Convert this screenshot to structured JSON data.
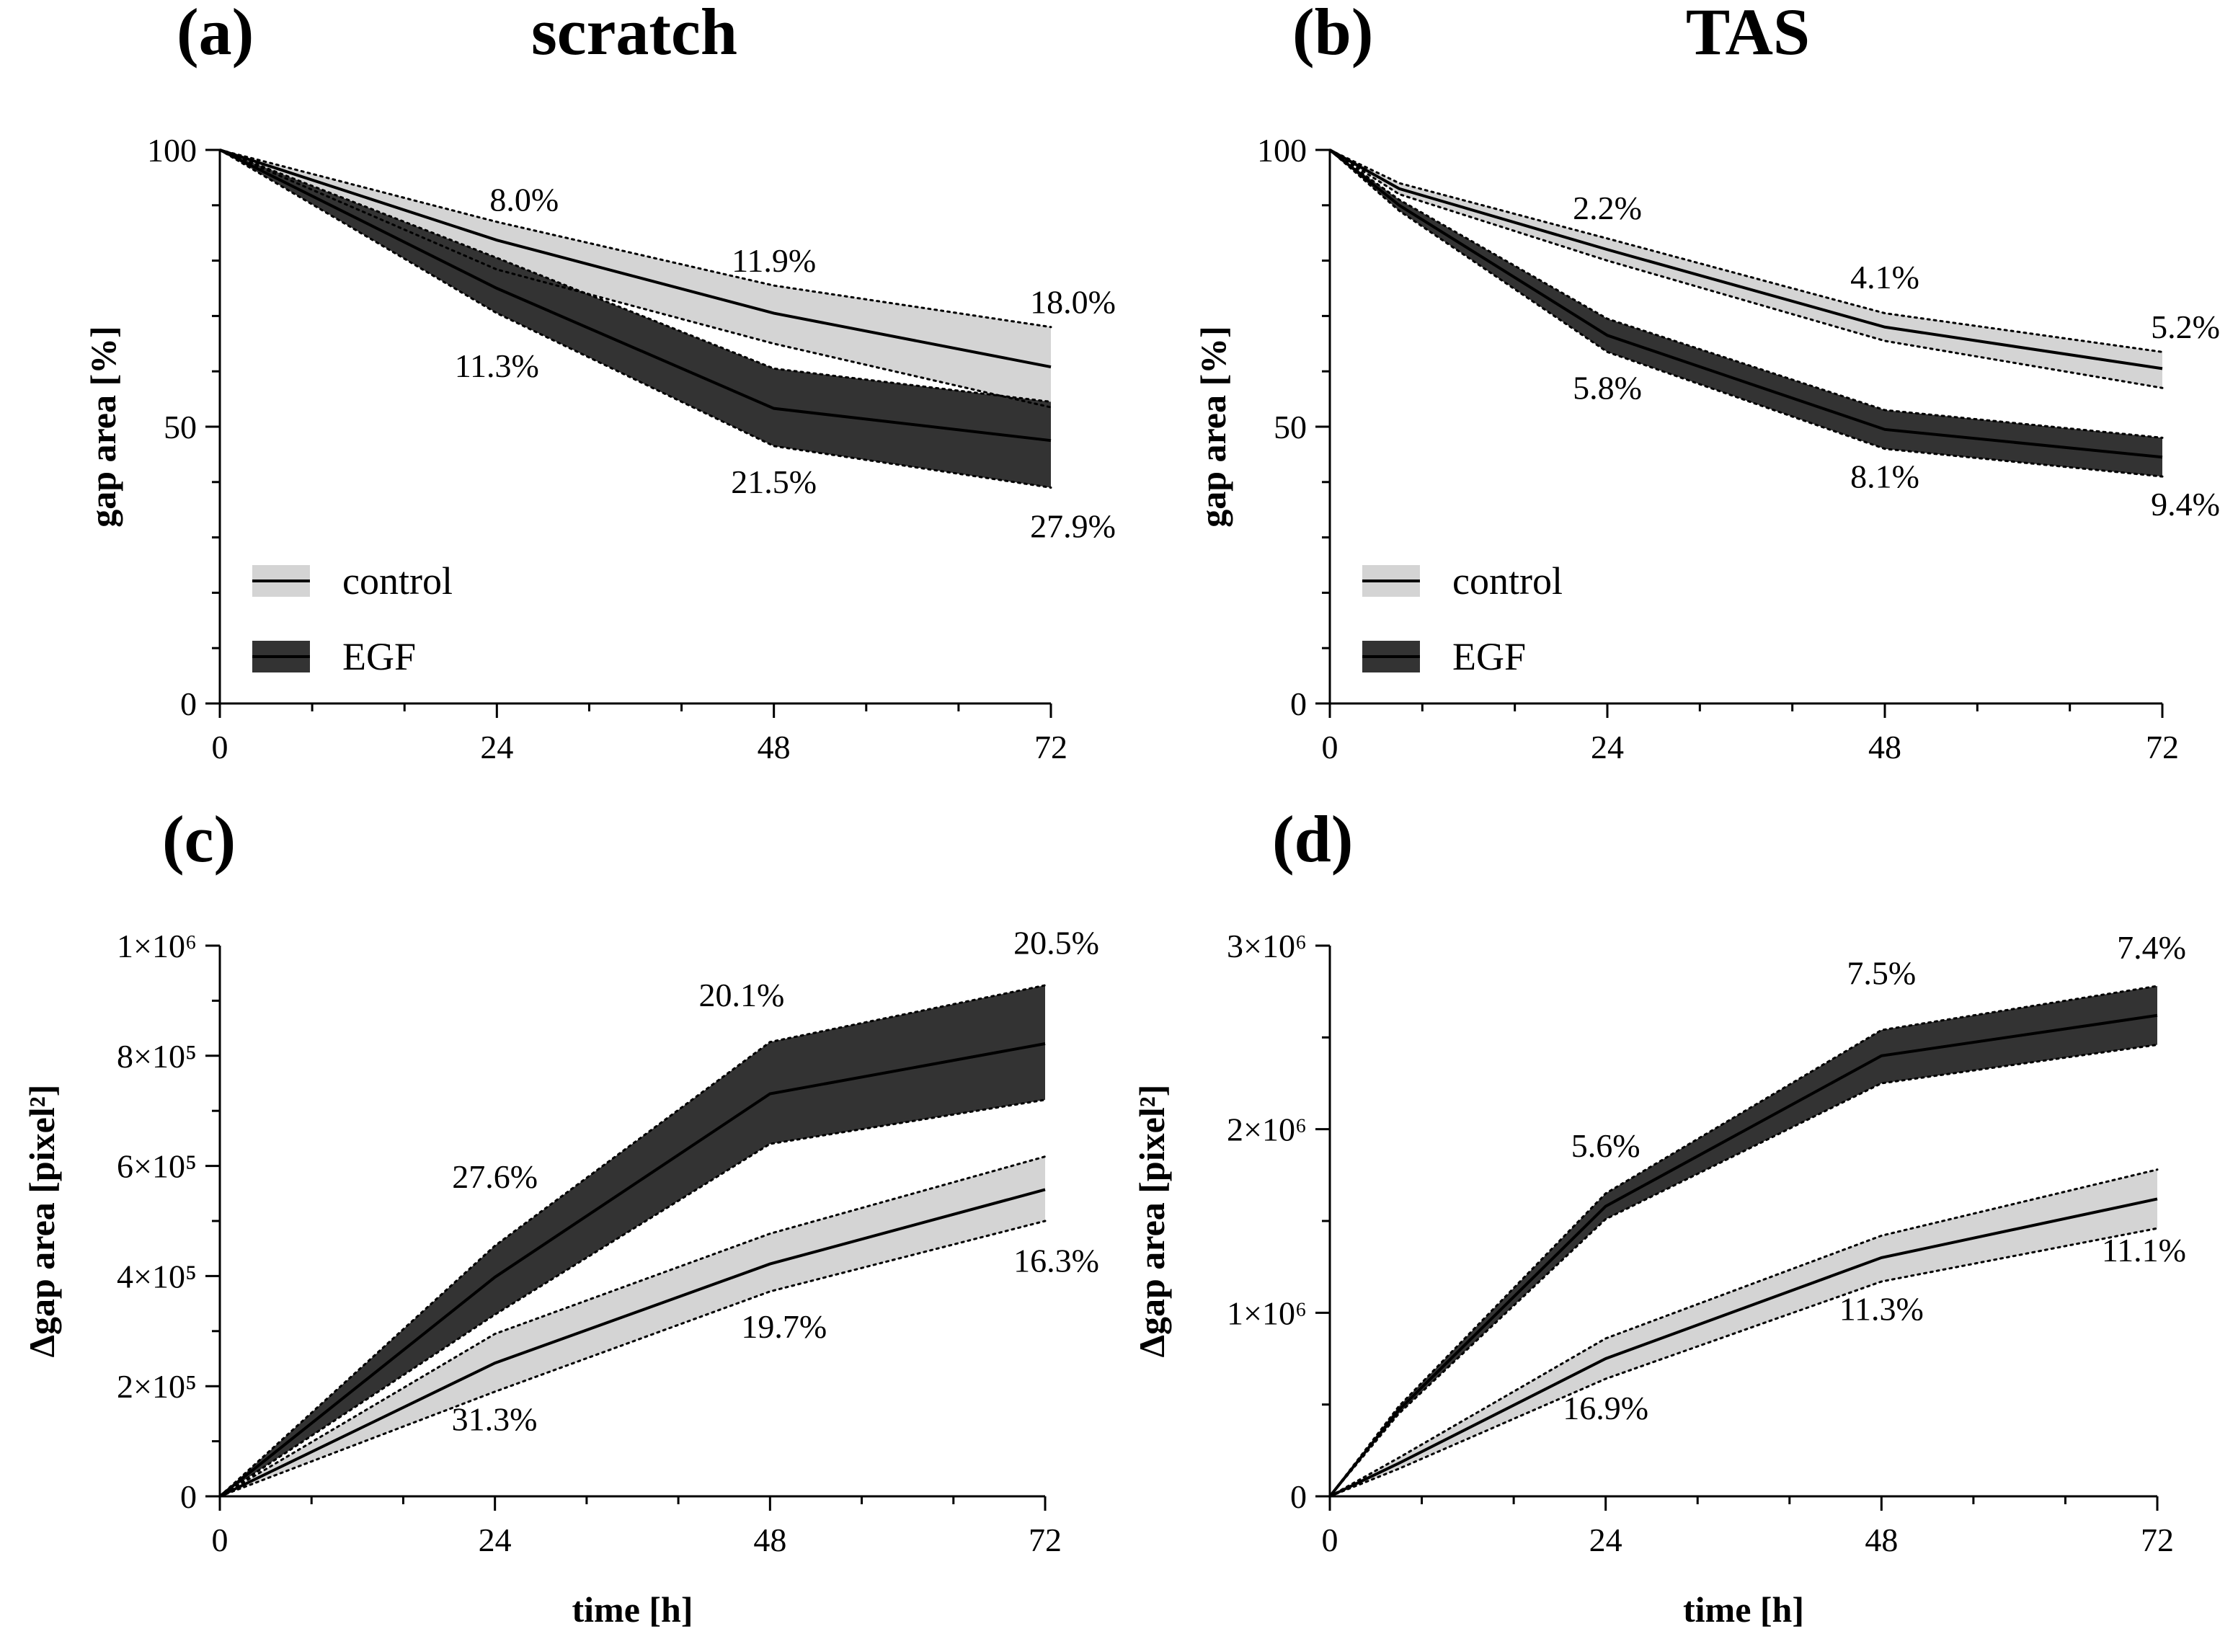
{
  "chart_data": [
    {
      "id": "a",
      "type": "line",
      "panel_label": "(a)",
      "title": "scratch",
      "xlabel": "",
      "ylabel": "gap area [%]",
      "x": [
        0,
        24,
        48,
        72
      ],
      "xlim": [
        0,
        72
      ],
      "ylim": [
        0,
        100
      ],
      "xticks": [
        "0",
        "24",
        "48",
        "72"
      ],
      "yticks": [
        {
          "v": 0,
          "label": "0"
        },
        {
          "v": 50,
          "label": "50"
        },
        {
          "v": 100,
          "label": "100"
        }
      ],
      "band_style": "dashed",
      "series": [
        {
          "name": "control",
          "style": "light",
          "values": [
            100,
            83.7,
            70.5,
            60.8
          ],
          "lower": [
            100,
            78.4,
            65.0,
            53.5
          ],
          "upper": [
            100,
            87.0,
            75.5,
            68.0
          ]
        },
        {
          "name": "EGF",
          "style": "dark",
          "values": [
            100,
            75.0,
            53.3,
            47.5
          ],
          "lower": [
            100,
            70.5,
            46.5,
            39.0
          ],
          "upper": [
            100,
            80.5,
            60.5,
            54.5
          ]
        }
      ],
      "annotations": [
        {
          "text": "8.0%",
          "x": 24,
          "y": 89,
          "anchor": "start",
          "dx": -10
        },
        {
          "text": "11.9%",
          "x": 48,
          "y": 78,
          "anchor": "middle"
        },
        {
          "text": "18.0%",
          "x": 72,
          "y": 70.5,
          "anchor": "end",
          "dx": 90
        },
        {
          "text": "11.3%",
          "x": 24,
          "y": 59,
          "anchor": "middle"
        },
        {
          "text": "21.5%",
          "x": 48,
          "y": 38,
          "anchor": "middle"
        },
        {
          "text": "27.9%",
          "x": 72,
          "y": 30,
          "anchor": "end",
          "dx": 90
        }
      ],
      "legend": {
        "position": "bottom-left",
        "entries": [
          "control",
          "EGF"
        ]
      }
    },
    {
      "id": "b",
      "type": "line",
      "panel_label": "(b)",
      "title": "TAS",
      "xlabel": "",
      "ylabel": "gap area [%]",
      "x": [
        0,
        6,
        24,
        48,
        72
      ],
      "xlim": [
        0,
        72
      ],
      "ylim": [
        0,
        100
      ],
      "xticks": [
        "0",
        "24",
        "48",
        "72"
      ],
      "yticks": [
        {
          "v": 0,
          "label": "0"
        },
        {
          "v": 50,
          "label": "50"
        },
        {
          "v": 100,
          "label": "100"
        }
      ],
      "band_style": "dashed",
      "series": [
        {
          "name": "control",
          "style": "light",
          "values": [
            100,
            93.0,
            82.0,
            68.0,
            60.5
          ],
          "lower": [
            100,
            92.0,
            80.0,
            65.5,
            57.0
          ],
          "upper": [
            100,
            94.0,
            84.0,
            70.5,
            63.5
          ]
        },
        {
          "name": "EGF",
          "style": "dark",
          "values": [
            100,
            90.0,
            66.5,
            49.5,
            44.5
          ],
          "lower": [
            100,
            89.0,
            63.5,
            46.0,
            41.0
          ],
          "upper": [
            100,
            91.0,
            69.5,
            53.0,
            48.0
          ]
        }
      ],
      "annotations": [
        {
          "text": "2.2%",
          "x": 24,
          "y": 87.5,
          "anchor": "middle"
        },
        {
          "text": "4.1%",
          "x": 48,
          "y": 75,
          "anchor": "middle"
        },
        {
          "text": "5.2%",
          "x": 72,
          "y": 66,
          "anchor": "end",
          "dx": 80
        },
        {
          "text": "5.8%",
          "x": 24,
          "y": 55,
          "anchor": "middle"
        },
        {
          "text": "8.1%",
          "x": 48,
          "y": 39,
          "anchor": "middle"
        },
        {
          "text": "9.4%",
          "x": 72,
          "y": 34,
          "anchor": "end",
          "dx": 80
        }
      ],
      "legend": {
        "position": "bottom-left",
        "entries": [
          "control",
          "EGF"
        ]
      }
    },
    {
      "id": "c",
      "type": "line",
      "panel_label": "(c)",
      "title": "",
      "xlabel": "time [h]",
      "ylabel": "Δgap area [pixel²]",
      "x": [
        0,
        24,
        48,
        72
      ],
      "xlim": [
        0,
        72
      ],
      "ylim": [
        0,
        1000000
      ],
      "xticks": [
        "0",
        "24",
        "48",
        "72"
      ],
      "yticks": [
        {
          "v": 0,
          "label": "0"
        },
        {
          "v": 200000,
          "label": "2×10⁵"
        },
        {
          "v": 400000,
          "label": "4×10⁵"
        },
        {
          "v": 600000,
          "label": "6×10⁵"
        },
        {
          "v": 800000,
          "label": "8×10⁵"
        },
        {
          "v": 1000000,
          "label": "1×10⁶"
        }
      ],
      "band_style": "dashed",
      "series": [
        {
          "name": "control",
          "style": "light",
          "values": [
            0,
            242000,
            422000,
            557000
          ],
          "lower": [
            0,
            190000,
            372000,
            500000
          ],
          "upper": [
            0,
            295000,
            477000,
            617000
          ]
        },
        {
          "name": "EGF",
          "style": "dark",
          "values": [
            0,
            398000,
            731000,
            822000
          ],
          "lower": [
            0,
            330000,
            640000,
            720000
          ],
          "upper": [
            0,
            455000,
            825000,
            928000
          ]
        }
      ],
      "annotations": [
        {
          "text": "27.6%",
          "x": 24,
          "y": 560000,
          "anchor": "middle"
        },
        {
          "text": "20.1%",
          "x": 48,
          "y": 890000,
          "anchor": "end",
          "dx": 20
        },
        {
          "text": "20.5%",
          "x": 72,
          "y": 985000,
          "anchor": "end",
          "dx": 75
        },
        {
          "text": "31.3%",
          "x": 24,
          "y": 120000,
          "anchor": "start",
          "dx": -60
        },
        {
          "text": "19.7%",
          "x": 48,
          "y": 288000,
          "anchor": "start",
          "dx": -40
        },
        {
          "text": "16.3%",
          "x": 72,
          "y": 408000,
          "anchor": "end",
          "dx": 75
        }
      ]
    },
    {
      "id": "d",
      "type": "line",
      "panel_label": "(d)",
      "title": "",
      "xlabel": "time [h]",
      "ylabel": "Δgap area [pixel²]",
      "x": [
        0,
        6,
        24,
        48,
        72
      ],
      "xlim": [
        0,
        72
      ],
      "ylim": [
        0,
        3000000
      ],
      "xticks": [
        "0",
        "24",
        "48",
        "72"
      ],
      "yticks": [
        {
          "v": 0,
          "label": "0"
        },
        {
          "v": 1000000,
          "label": "1×10⁶"
        },
        {
          "v": 2000000,
          "label": "2×10⁶"
        },
        {
          "v": 3000000,
          "label": "3×10⁶"
        }
      ],
      "band_style": "dashed",
      "series": [
        {
          "name": "control",
          "style": "light",
          "values": [
            0,
            180000,
            750000,
            1300000,
            1620000
          ],
          "lower": [
            0,
            150000,
            640000,
            1170000,
            1460000
          ],
          "upper": [
            0,
            210000,
            860000,
            1420000,
            1780000
          ]
        },
        {
          "name": "EGF",
          "style": "dark",
          "values": [
            0,
            470000,
            1580000,
            2400000,
            2620000
          ],
          "lower": [
            0,
            450000,
            1510000,
            2250000,
            2460000
          ],
          "upper": [
            0,
            490000,
            1650000,
            2540000,
            2780000
          ]
        }
      ],
      "annotations": [
        {
          "text": "5.6%",
          "x": 24,
          "y": 1850000,
          "anchor": "middle"
        },
        {
          "text": "7.5%",
          "x": 48,
          "y": 2790000,
          "anchor": "middle"
        },
        {
          "text": "7.4%",
          "x": 72,
          "y": 2930000,
          "anchor": "end",
          "dx": 40
        },
        {
          "text": "16.9%",
          "x": 24,
          "y": 420000,
          "anchor": "middle"
        },
        {
          "text": "11.3%",
          "x": 48,
          "y": 960000,
          "anchor": "middle"
        },
        {
          "text": "11.1%",
          "x": 72,
          "y": 1280000,
          "anchor": "end",
          "dx": 40
        }
      ]
    }
  ]
}
